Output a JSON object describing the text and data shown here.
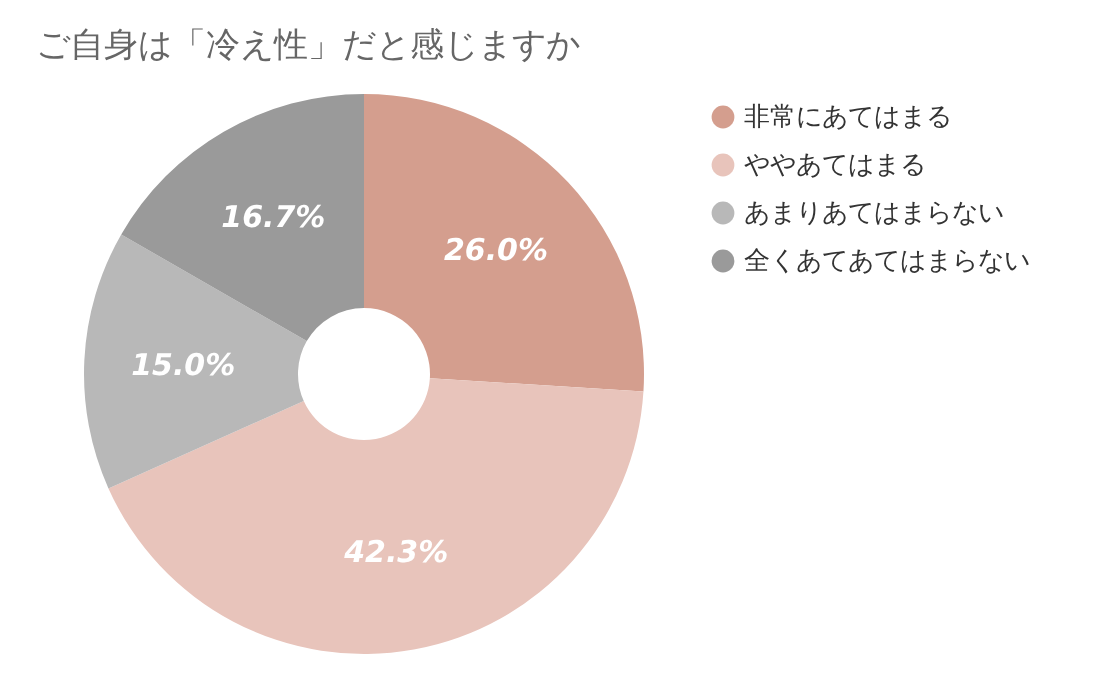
{
  "chart_data": {
    "type": "donut",
    "title": "ご自身は「冷え性」だと感じますか",
    "categories": [
      "非常にあてはまる",
      "ややあてはまる",
      "あまりあてはまらない",
      "全くあてあてはまらない"
    ],
    "values": [
      26.0,
      42.3,
      15.0,
      16.7
    ],
    "colors": [
      "#d49e8e",
      "#e8c4bb",
      "#b8b8b8",
      "#9a9a9a"
    ],
    "value_labels": [
      "26.0%",
      "42.3%",
      "15.0%",
      "16.7%"
    ],
    "legend": "right"
  }
}
